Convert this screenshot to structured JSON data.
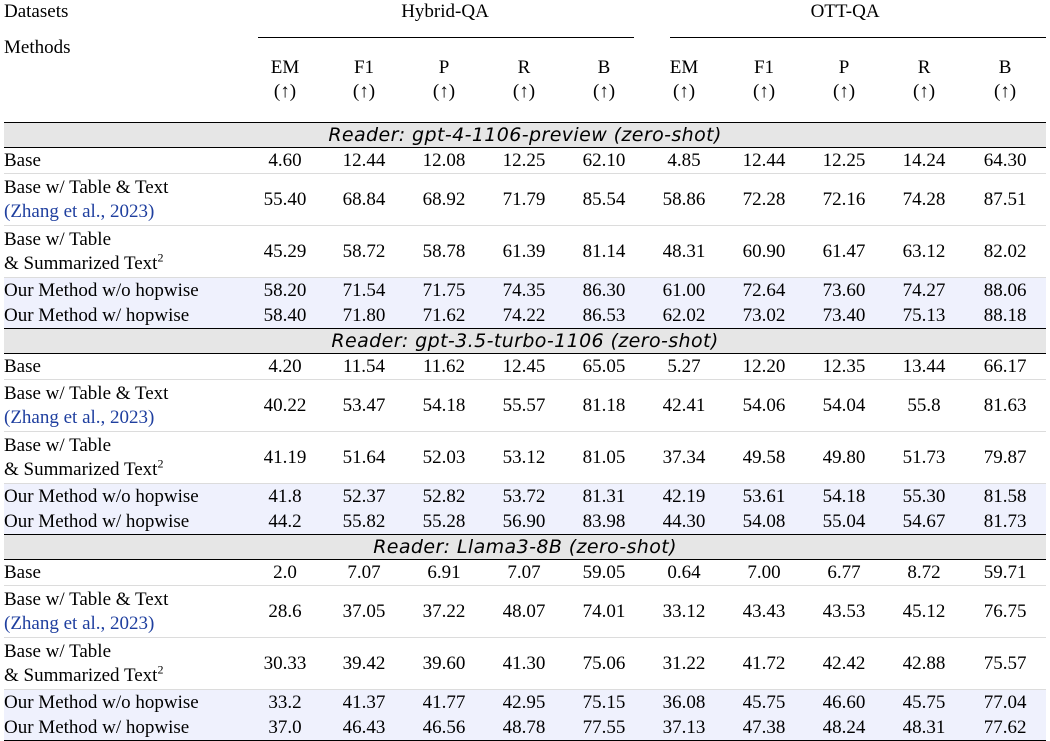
{
  "header": {
    "datasets_label": "Datasets",
    "methods_label": "Methods",
    "groups": [
      "Hybrid-QA",
      "OTT-QA"
    ],
    "metrics": [
      "EM",
      "F1",
      "P",
      "R",
      "B"
    ],
    "arrow": "(↑)"
  },
  "sections": [
    {
      "reader": "Reader: gpt-4-1106-preview (zero-shot)",
      "rows": [
        {
          "m1": "Base",
          "m2": "",
          "type": "plain",
          "values": [
            "4.60",
            "12.44",
            "12.08",
            "12.25",
            "62.10",
            "4.85",
            "12.44",
            "12.25",
            "14.24",
            "64.30"
          ],
          "bold": []
        },
        {
          "m1": "Base w/ Table & Text",
          "m2": "(Zhang et al., 2023)",
          "type": "cite",
          "values": [
            "55.40",
            "68.84",
            "68.92",
            "71.79",
            "85.54",
            "58.86",
            "72.28",
            "72.16",
            "74.28",
            "87.51"
          ],
          "bold": []
        },
        {
          "m1": "Base w/ Table",
          "m2": "& Summarized Text",
          "sup": "2",
          "type": "sup",
          "values": [
            "45.29",
            "58.72",
            "58.78",
            "61.39",
            "81.14",
            "48.31",
            "60.90",
            "61.47",
            "63.12",
            "82.02"
          ],
          "bold": []
        },
        {
          "m1": "Our Method w/o hopwise",
          "m2": "",
          "type": "ours",
          "values": [
            "58.20",
            "71.54",
            "71.75",
            "74.35",
            "86.30",
            "61.00",
            "72.64",
            "73.60",
            "74.27",
            "88.06"
          ],
          "bold": []
        },
        {
          "m1": "Our Method w/ hopwise",
          "m2": "",
          "type": "ours",
          "values": [
            "58.40",
            "71.80",
            "71.62",
            "74.22",
            "86.53",
            "62.02",
            "73.02",
            "73.40",
            "75.13",
            "88.18"
          ],
          "bold": [
            0,
            1,
            2,
            3,
            4,
            5,
            6,
            7,
            8,
            9
          ]
        }
      ]
    },
    {
      "reader": "Reader: gpt-3.5-turbo-1106 (zero-shot)",
      "rows": [
        {
          "m1": "Base",
          "m2": "",
          "type": "plain",
          "values": [
            "4.20",
            "11.54",
            "11.62",
            "12.45",
            "65.05",
            "5.27",
            "12.20",
            "12.35",
            "13.44",
            "66.17"
          ],
          "bold": []
        },
        {
          "m1": "Base w/ Table & Text",
          "m2": "(Zhang et al., 2023)",
          "type": "cite",
          "values": [
            "40.22",
            "53.47",
            "54.18",
            "55.57",
            "81.18",
            "42.41",
            "54.06",
            "54.04",
            "55.8",
            "81.63"
          ],
          "bold": [
            8
          ]
        },
        {
          "m1": "Base w/ Table",
          "m2": "& Summarized Text",
          "sup": "2",
          "type": "sup",
          "values": [
            "41.19",
            "51.64",
            "52.03",
            "53.12",
            "81.05",
            "37.34",
            "49.58",
            "49.80",
            "51.73",
            "79.87"
          ],
          "bold": []
        },
        {
          "m1": "Our Method w/o hopwise",
          "m2": "",
          "type": "ours",
          "values": [
            "41.8",
            "52.37",
            "52.82",
            "53.72",
            "81.31",
            "42.19",
            "53.61",
            "54.18",
            "55.30",
            "81.58"
          ],
          "bold": []
        },
        {
          "m1": "Our Method w/ hopwise",
          "m2": "",
          "type": "ours",
          "values": [
            "44.2",
            "55.82",
            "55.28",
            "56.90",
            "83.98",
            "44.30",
            "54.08",
            "55.04",
            "54.67",
            "81.73"
          ],
          "bold": [
            0,
            1,
            2,
            3,
            4,
            5,
            6,
            7,
            9
          ]
        }
      ]
    },
    {
      "reader": "Reader: Llama3-8B (zero-shot)",
      "rows": [
        {
          "m1": "Base",
          "m2": "",
          "type": "plain",
          "values": [
            "2.0",
            "7.07",
            "6.91",
            "7.07",
            "59.05",
            "0.64",
            "7.00",
            "6.77",
            "8.72",
            "59.71"
          ],
          "bold": []
        },
        {
          "m1": "Base w/ Table & Text",
          "m2": "(Zhang et al., 2023)",
          "type": "cite",
          "values": [
            "28.6",
            "37.05",
            "37.22",
            "48.07",
            "74.01",
            "33.12",
            "43.43",
            "43.53",
            "45.12",
            "76.75"
          ],
          "bold": []
        },
        {
          "m1": "Base w/ Table",
          "m2": "& Summarized Text",
          "sup": "2",
          "type": "sup",
          "values": [
            "30.33",
            "39.42",
            "39.60",
            "41.30",
            "75.06",
            "31.22",
            "41.72",
            "42.42",
            "42.88",
            "75.57"
          ],
          "bold": []
        },
        {
          "m1": "Our Method w/o hopwise",
          "m2": "",
          "type": "ours",
          "values": [
            "33.2",
            "41.37",
            "41.77",
            "42.95",
            "75.15",
            "36.08",
            "45.75",
            "46.60",
            "45.75",
            "77.04"
          ],
          "bold": []
        },
        {
          "m1": "Our Method w/ hopwise",
          "m2": "",
          "type": "ours",
          "values": [
            "37.0",
            "46.43",
            "46.56",
            "48.78",
            "77.55",
            "37.13",
            "47.38",
            "48.24",
            "48.31",
            "77.62"
          ],
          "bold": [
            0,
            1,
            2,
            3,
            4,
            5,
            6,
            7,
            8,
            9
          ]
        }
      ]
    }
  ]
}
